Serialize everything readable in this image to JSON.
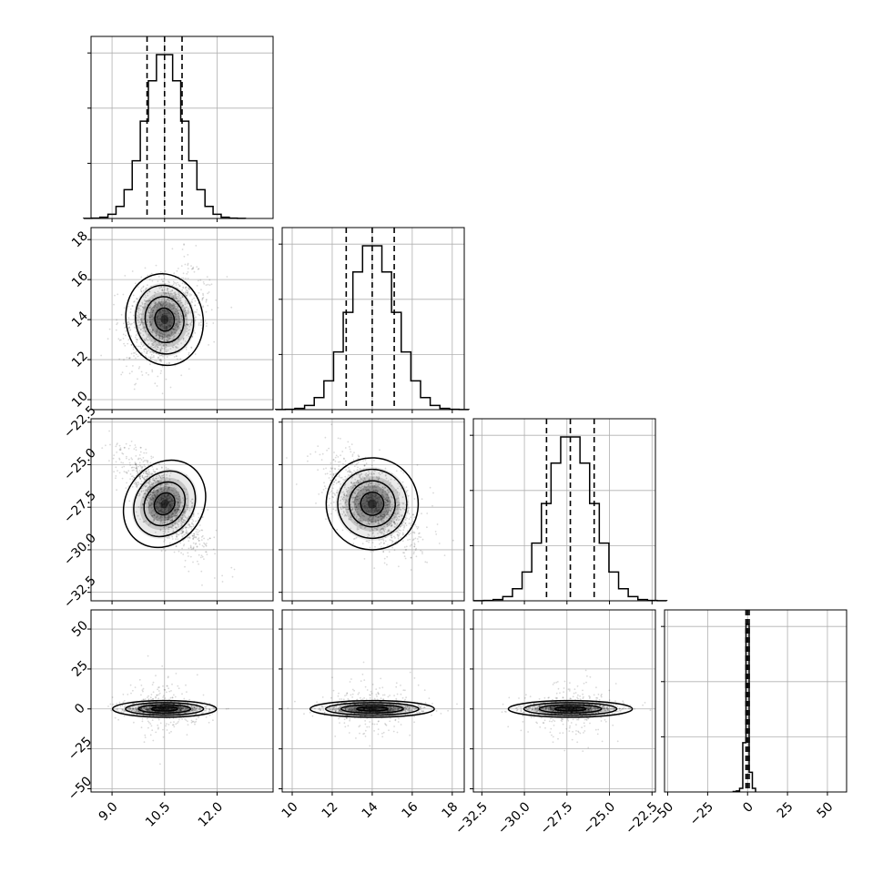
{
  "chart_data": {
    "type": "corner",
    "grid": true,
    "params": [
      {
        "index": 0,
        "mean": 10.5,
        "sd": 0.55,
        "range": [
          8.4,
          13.6
        ],
        "ticks": [
          9.0,
          10.5,
          12.0
        ],
        "tick_labels": [
          "9.0",
          "10.5",
          "12.0"
        ],
        "quantiles": [
          10.0,
          10.5,
          11.0
        ]
      },
      {
        "index": 1,
        "mean": 14.0,
        "sd": 1.15,
        "range": [
          9.5,
          18.6
        ],
        "ticks": [
          10,
          12,
          14,
          16,
          18
        ],
        "tick_labels": [
          "10",
          "12",
          "14",
          "16",
          "18"
        ],
        "quantiles": [
          12.7,
          14.0,
          15.1
        ]
      },
      {
        "index": 2,
        "mean": -27.3,
        "sd": 1.35,
        "range": [
          -33.0,
          -22.3
        ],
        "ticks": [
          -32.5,
          -30.0,
          -27.5,
          -25.0,
          -22.5
        ],
        "tick_labels": [
          "−32.5",
          "−30.0",
          "−27.5",
          "−25.0",
          "−22.5"
        ],
        "quantiles": [
          -28.7,
          -27.3,
          -25.9
        ]
      },
      {
        "index": 3,
        "mean": 0.0,
        "sd": 2.0,
        "range": [
          -52,
          62
        ],
        "ticks": [
          -50,
          -25,
          0,
          25,
          50
        ],
        "tick_labels": [
          "−50",
          "−25",
          "0",
          "25",
          "50"
        ],
        "quantiles": [
          -1.0,
          0.0,
          1.0
        ]
      }
    ],
    "correlations": [
      [
        0,
        1,
        0.3
      ],
      [
        0,
        2,
        -0.78
      ],
      [
        1,
        2,
        -0.55
      ],
      [
        0,
        3,
        0.0
      ],
      [
        1,
        3,
        0.0
      ],
      [
        2,
        3,
        0.0
      ]
    ]
  }
}
